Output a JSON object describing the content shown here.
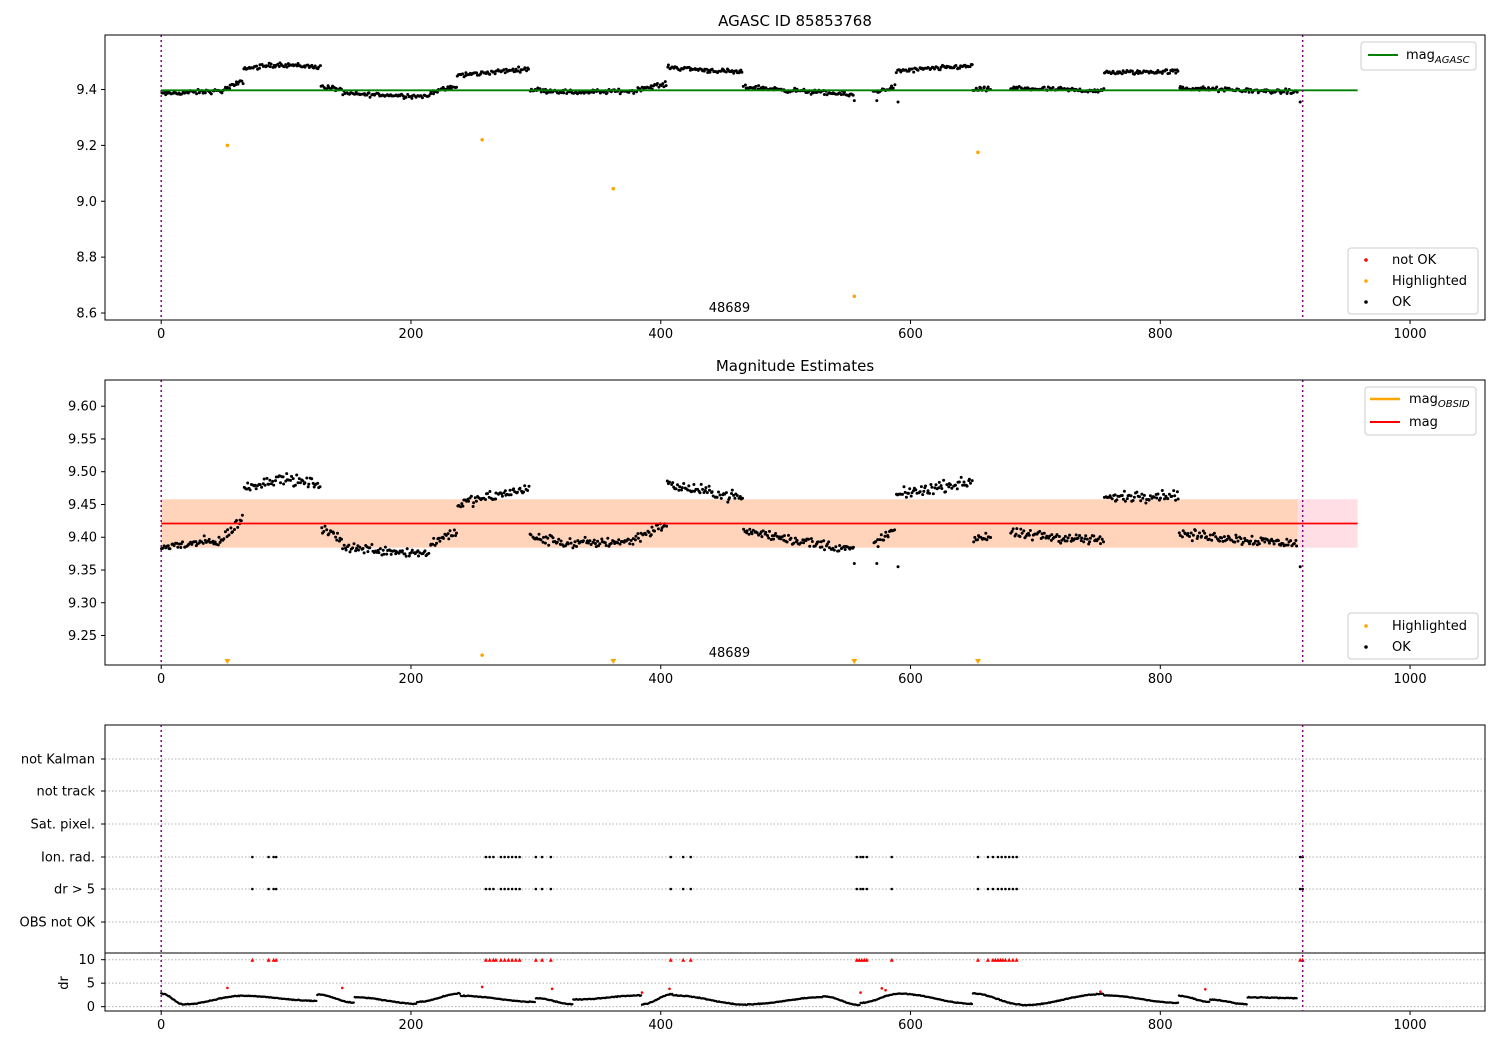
{
  "chart_data": [
    {
      "type": "scatter",
      "title": "AGASC ID 85853768",
      "xlabel": "",
      "ylabel": "",
      "xlim": [
        -45,
        1060
      ],
      "ylim": [
        8.575,
        9.595
      ],
      "xticks": [
        0,
        200,
        400,
        600,
        800,
        1000
      ],
      "yticks": [
        8.6,
        8.8,
        9.0,
        9.2,
        9.4
      ],
      "ytick_labels": [
        "8.6",
        "8.8",
        "9.0",
        "9.2",
        "9.4"
      ],
      "annotation": "48689",
      "annotation_x": 455,
      "vlines": [
        0,
        914
      ],
      "hlines": [
        {
          "name": "mag",
          "subscript": "AGASC",
          "value": 9.397,
          "x_range": [
            0,
            958
          ],
          "color": "#008000"
        }
      ],
      "legend": {
        "placement": "top-right",
        "entries": [
          {
            "name": "mag",
            "subscript": "AGASC",
            "color": "#008000",
            "kind": "line"
          }
        ]
      },
      "legend2": {
        "placement": "lower-right",
        "entries": [
          {
            "name": "not OK",
            "color": "#ff0000",
            "kind": "dot"
          },
          {
            "name": "Highlighted",
            "color": "#ffa500",
            "kind": "dot"
          },
          {
            "name": "OK",
            "color": "#000000",
            "kind": "dot"
          }
        ]
      },
      "segments": [
        {
          "x": [
            0,
            50
          ],
          "y": [
            9.385,
            9.395
          ]
        },
        {
          "x": [
            50,
            66
          ],
          "y": [
            9.4,
            9.43
          ]
        },
        {
          "x": [
            66,
            95
          ],
          "y": [
            9.475,
            9.49
          ]
        },
        {
          "x": [
            95,
            128
          ],
          "y": [
            9.49,
            9.48
          ]
        },
        {
          "x": [
            128,
            145
          ],
          "y": [
            9.41,
            9.4
          ]
        },
        {
          "x": [
            145,
            215
          ],
          "y": [
            9.385,
            9.375
          ]
        },
        {
          "x": [
            215,
            237
          ],
          "y": [
            9.39,
            9.41
          ]
        },
        {
          "x": [
            237,
            295
          ],
          "y": [
            9.45,
            9.475
          ]
        },
        {
          "x": [
            295,
            330
          ],
          "y": [
            9.4,
            9.39
          ]
        },
        {
          "x": [
            330,
            380
          ],
          "y": [
            9.39,
            9.395
          ]
        },
        {
          "x": [
            380,
            405
          ],
          "y": [
            9.4,
            9.42
          ]
        },
        {
          "x": [
            405,
            466
          ],
          "y": [
            9.48,
            9.46
          ]
        },
        {
          "x": [
            466,
            555
          ],
          "y": [
            9.41,
            9.38
          ]
        },
        {
          "x": [
            570,
            588
          ],
          "y": [
            9.39,
            9.41
          ]
        },
        {
          "x": [
            588,
            650
          ],
          "y": [
            9.465,
            9.485
          ]
        },
        {
          "x": [
            650,
            665
          ],
          "y": [
            9.4,
            9.4
          ]
        },
        {
          "x": [
            680,
            755
          ],
          "y": [
            9.405,
            9.395
          ]
        },
        {
          "x": [
            755,
            815
          ],
          "y": [
            9.46,
            9.465
          ]
        },
        {
          "x": [
            815,
            910
          ],
          "y": [
            9.405,
            9.39
          ]
        }
      ],
      "noise": 0.012,
      "highlighted": {
        "x": [
          53,
          257,
          362,
          555,
          654
        ],
        "y": [
          9.2,
          9.22,
          9.045,
          8.66,
          9.175
        ]
      },
      "not_ok": {
        "x": [],
        "y": []
      }
    },
    {
      "type": "scatter",
      "title": "Magnitude Estimates",
      "xlabel": "",
      "ylabel": "",
      "xlim": [
        -45,
        1060
      ],
      "ylim": [
        9.205,
        9.64
      ],
      "xticks": [
        0,
        200,
        400,
        600,
        800,
        1000
      ],
      "yticks": [
        9.25,
        9.3,
        9.35,
        9.4,
        9.45,
        9.5,
        9.55,
        9.6
      ],
      "ytick_labels": [
        "9.25",
        "9.30",
        "9.35",
        "9.40",
        "9.45",
        "9.50",
        "9.55",
        "9.60"
      ],
      "annotation": "48689",
      "annotation_x": 455,
      "vlines": [
        0,
        914
      ],
      "hlines": [
        {
          "name": "mag",
          "value": 9.421,
          "x_range": [
            0,
            958
          ],
          "color": "#ff0000"
        }
      ],
      "band": {
        "center": 9.421,
        "halfwidth": 0.037,
        "x_range": [
          0,
          958
        ]
      },
      "legend": {
        "placement": "top-right",
        "entries": [
          {
            "name": "mag",
            "subscript": "OBSID",
            "color": "#ffa500",
            "kind": "line"
          },
          {
            "name": "mag",
            "color": "#ff0000",
            "kind": "line"
          }
        ]
      },
      "legend2": {
        "placement": "lower-right",
        "entries": [
          {
            "name": "Highlighted",
            "color": "#ffa500",
            "kind": "dot"
          },
          {
            "name": "OK",
            "color": "#000000",
            "kind": "dot"
          }
        ]
      },
      "segments": [
        {
          "x": [
            0,
            50
          ],
          "y": [
            9.385,
            9.395
          ]
        },
        {
          "x": [
            50,
            66
          ],
          "y": [
            9.4,
            9.43
          ]
        },
        {
          "x": [
            66,
            95
          ],
          "y": [
            9.475,
            9.49
          ]
        },
        {
          "x": [
            95,
            128
          ],
          "y": [
            9.49,
            9.48
          ]
        },
        {
          "x": [
            128,
            145
          ],
          "y": [
            9.41,
            9.4
          ]
        },
        {
          "x": [
            145,
            215
          ],
          "y": [
            9.385,
            9.375
          ]
        },
        {
          "x": [
            215,
            237
          ],
          "y": [
            9.39,
            9.41
          ]
        },
        {
          "x": [
            237,
            295
          ],
          "y": [
            9.45,
            9.475
          ]
        },
        {
          "x": [
            295,
            330
          ],
          "y": [
            9.4,
            9.39
          ]
        },
        {
          "x": [
            330,
            380
          ],
          "y": [
            9.39,
            9.395
          ]
        },
        {
          "x": [
            380,
            405
          ],
          "y": [
            9.4,
            9.42
          ]
        },
        {
          "x": [
            405,
            466
          ],
          "y": [
            9.48,
            9.46
          ]
        },
        {
          "x": [
            466,
            555
          ],
          "y": [
            9.41,
            9.38
          ]
        },
        {
          "x": [
            570,
            588
          ],
          "y": [
            9.39,
            9.41
          ]
        },
        {
          "x": [
            588,
            650
          ],
          "y": [
            9.465,
            9.485
          ]
        },
        {
          "x": [
            650,
            665
          ],
          "y": [
            9.4,
            9.4
          ]
        },
        {
          "x": [
            680,
            755
          ],
          "y": [
            9.405,
            9.395
          ]
        },
        {
          "x": [
            755,
            815
          ],
          "y": [
            9.46,
            9.465
          ]
        },
        {
          "x": [
            815,
            910
          ],
          "y": [
            9.405,
            9.39
          ]
        }
      ],
      "noise": 0.012,
      "highlighted": {
        "x": [
          257
        ],
        "y": [
          9.22
        ]
      },
      "highlighted_offscale": {
        "x": [
          53,
          362,
          555,
          654
        ],
        "y": [
          9.21,
          9.21,
          9.21,
          9.21
        ]
      }
    },
    {
      "type": "scatter",
      "title": "",
      "xlabel": "",
      "xlim": [
        -45,
        1060
      ],
      "xticks": [
        0,
        200,
        400,
        600,
        800,
        1000
      ],
      "vlines": [
        0,
        914
      ],
      "categories": [
        "not Kalman",
        "not track",
        "Sat. pixel.",
        "Ion. rad.",
        "dr > 5",
        "OBS not OK"
      ],
      "flags": {
        "Ion. rad.": [
          73,
          86,
          90,
          92,
          260,
          263,
          266,
          272,
          275,
          278,
          281,
          284,
          287,
          300,
          305,
          312,
          408,
          418,
          424,
          557,
          560,
          562,
          565,
          585,
          654,
          662,
          666,
          670,
          673,
          676,
          679,
          682,
          685,
          912,
          914
        ],
        "dr > 5": [
          73,
          86,
          90,
          92,
          260,
          263,
          266,
          272,
          275,
          278,
          281,
          284,
          287,
          300,
          305,
          312,
          408,
          418,
          424,
          557,
          560,
          562,
          565,
          585,
          654,
          662,
          666,
          670,
          673,
          676,
          679,
          682,
          685,
          912,
          914
        ]
      },
      "dr": {
        "ylabel": "dr",
        "ylim": [
          -0.5,
          11
        ],
        "yticks": [
          0,
          5,
          10
        ],
        "ytick_labels": [
          "0",
          "5",
          "10"
        ],
        "arcs": [
          [
            0,
            18,
            2.8,
            0.5
          ],
          [
            18,
            65,
            0.5,
            2.3
          ],
          [
            65,
            125,
            2.3,
            1.2
          ],
          [
            125,
            155,
            2.6,
            0.8
          ],
          [
            155,
            205,
            2.0,
            0.6
          ],
          [
            205,
            240,
            1.0,
            2.8
          ],
          [
            240,
            300,
            2.3,
            1.0
          ],
          [
            300,
            330,
            1.8,
            0.5
          ],
          [
            330,
            385,
            1.5,
            2.4
          ],
          [
            385,
            410,
            0.5,
            2.7
          ],
          [
            410,
            470,
            2.4,
            0.4
          ],
          [
            470,
            530,
            0.5,
            2.0
          ],
          [
            530,
            560,
            2.2,
            0.3
          ],
          [
            560,
            590,
            0.8,
            2.7
          ],
          [
            590,
            650,
            2.8,
            0.6
          ],
          [
            650,
            690,
            2.8,
            0.4
          ],
          [
            690,
            755,
            0.3,
            2.7
          ],
          [
            755,
            815,
            2.4,
            0.8
          ],
          [
            815,
            840,
            2.3,
            1.0
          ],
          [
            840,
            870,
            1.5,
            0.5
          ],
          [
            870,
            910,
            2.0,
            1.8
          ]
        ],
        "outliers_red": {
          "x": [
            53,
            145,
            257,
            313,
            385,
            407,
            560,
            577,
            580,
            752,
            836
          ],
          "y": [
            4.0,
            4.0,
            4.2,
            3.8,
            3.0,
            3.8,
            3.0,
            3.9,
            3.5,
            3.2,
            3.7
          ]
        },
        "capped_red": [
          73,
          86,
          90,
          92,
          260,
          263,
          266,
          268,
          272,
          275,
          278,
          281,
          284,
          287,
          300,
          305,
          312,
          408,
          418,
          424,
          557,
          559,
          561,
          563,
          565,
          585,
          654,
          662,
          666,
          668,
          670,
          672,
          674,
          676,
          679,
          682,
          685,
          912,
          914
        ]
      }
    }
  ]
}
